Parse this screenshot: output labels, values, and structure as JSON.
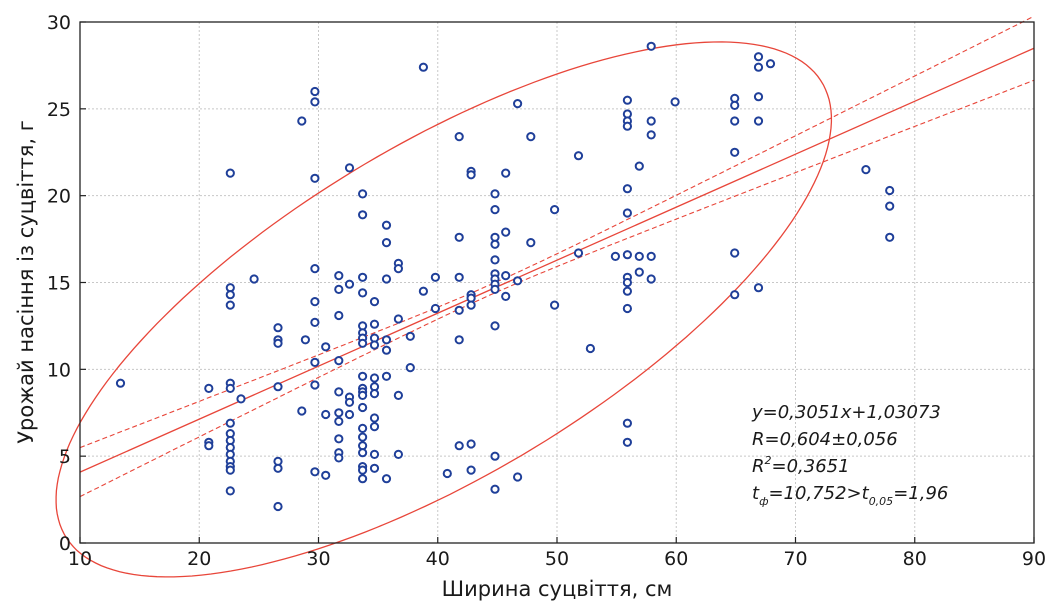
{
  "chart_data": {
    "type": "scatter",
    "xlabel": "Ширина суцвіття, см",
    "ylabel": "Урожай насіння із суцвіття, г",
    "xlim": [
      10,
      90
    ],
    "ylim": [
      0,
      30
    ],
    "xticks": [
      10,
      20,
      30,
      40,
      50,
      60,
      70,
      80,
      90
    ],
    "yticks": [
      0,
      5,
      10,
      15,
      20,
      25,
      30
    ],
    "grid": true,
    "colors": {
      "points": "#1f3f99",
      "fit": "#e8463a",
      "grid": "#c8c8c8"
    },
    "regression": {
      "slope": 0.3051,
      "intercept": 1.03073,
      "ci_offset": 1.2
    },
    "ellipse": {
      "cx": 40.5,
      "cy": 13.45,
      "semi_major": 34.5,
      "semi_minor": 10.2,
      "angle_deg": 20.5
    },
    "annotations": {
      "equation": "y=0,3051x+1,03073",
      "r": "R=0,604±0,056",
      "r2_prefix": "R",
      "r2_sup": "2",
      "r2_suffix": "=0,3651",
      "t_prefix": "t",
      "t_sub1": "ф",
      "t_mid": "=10,752>t",
      "t_sub2": "0,05",
      "t_suffix": "=1,96"
    },
    "points": [
      [
        13.4,
        9.2
      ],
      [
        20.8,
        8.9
      ],
      [
        20.8,
        5.8
      ],
      [
        20.8,
        5.6
      ],
      [
        22.6,
        21.3
      ],
      [
        22.6,
        14.7
      ],
      [
        22.6,
        14.3
      ],
      [
        22.6,
        13.7
      ],
      [
        22.6,
        9.2
      ],
      [
        22.6,
        8.9
      ],
      [
        22.6,
        6.9
      ],
      [
        22.6,
        6.3
      ],
      [
        22.6,
        5.9
      ],
      [
        22.6,
        5.5
      ],
      [
        22.6,
        5.1
      ],
      [
        22.6,
        4.7
      ],
      [
        22.6,
        4.4
      ],
      [
        22.6,
        4.2
      ],
      [
        22.6,
        3.0
      ],
      [
        23.5,
        8.3
      ],
      [
        24.6,
        15.2
      ],
      [
        26.6,
        12.4
      ],
      [
        26.6,
        11.7
      ],
      [
        26.6,
        11.5
      ],
      [
        26.6,
        9.0
      ],
      [
        26.6,
        4.7
      ],
      [
        26.6,
        4.3
      ],
      [
        26.6,
        2.1
      ],
      [
        28.6,
        24.3
      ],
      [
        28.6,
        7.6
      ],
      [
        28.9,
        11.7
      ],
      [
        29.7,
        26.0
      ],
      [
        29.7,
        25.4
      ],
      [
        29.7,
        21.0
      ],
      [
        29.7,
        15.8
      ],
      [
        29.7,
        13.9
      ],
      [
        29.7,
        12.7
      ],
      [
        29.7,
        10.4
      ],
      [
        29.7,
        9.1
      ],
      [
        29.7,
        4.1
      ],
      [
        30.6,
        11.3
      ],
      [
        30.6,
        7.4
      ],
      [
        30.6,
        3.9
      ],
      [
        31.7,
        15.4
      ],
      [
        31.7,
        14.6
      ],
      [
        31.7,
        13.1
      ],
      [
        31.7,
        10.5
      ],
      [
        31.7,
        8.7
      ],
      [
        31.7,
        7.5
      ],
      [
        31.7,
        7.0
      ],
      [
        31.7,
        6.0
      ],
      [
        31.7,
        5.2
      ],
      [
        31.7,
        4.9
      ],
      [
        32.6,
        21.6
      ],
      [
        32.6,
        14.9
      ],
      [
        32.6,
        8.4
      ],
      [
        32.6,
        8.1
      ],
      [
        32.6,
        7.4
      ],
      [
        33.7,
        20.1
      ],
      [
        33.7,
        18.9
      ],
      [
        33.7,
        15.3
      ],
      [
        33.7,
        14.4
      ],
      [
        33.7,
        12.5
      ],
      [
        33.7,
        12.1
      ],
      [
        33.7,
        11.8
      ],
      [
        33.7,
        11.5
      ],
      [
        33.7,
        9.6
      ],
      [
        33.7,
        8.9
      ],
      [
        33.7,
        8.7
      ],
      [
        33.7,
        8.5
      ],
      [
        33.7,
        7.8
      ],
      [
        33.7,
        6.6
      ],
      [
        33.7,
        6.1
      ],
      [
        33.7,
        5.6
      ],
      [
        33.7,
        5.2
      ],
      [
        33.7,
        4.4
      ],
      [
        33.7,
        4.2
      ],
      [
        33.7,
        3.7
      ],
      [
        34.7,
        13.9
      ],
      [
        34.7,
        12.6
      ],
      [
        34.7,
        11.8
      ],
      [
        34.7,
        11.4
      ],
      [
        34.7,
        9.5
      ],
      [
        34.7,
        9.0
      ],
      [
        34.7,
        8.6
      ],
      [
        34.7,
        7.2
      ],
      [
        34.7,
        6.7
      ],
      [
        34.7,
        5.1
      ],
      [
        34.7,
        4.3
      ],
      [
        35.7,
        18.3
      ],
      [
        35.7,
        17.3
      ],
      [
        35.7,
        15.2
      ],
      [
        35.7,
        11.7
      ],
      [
        35.7,
        11.1
      ],
      [
        35.7,
        9.6
      ],
      [
        35.7,
        3.7
      ],
      [
        36.7,
        16.1
      ],
      [
        36.7,
        15.8
      ],
      [
        36.7,
        12.9
      ],
      [
        36.7,
        8.5
      ],
      [
        36.7,
        5.1
      ],
      [
        37.7,
        11.9
      ],
      [
        37.7,
        10.1
      ],
      [
        38.8,
        27.4
      ],
      [
        38.8,
        14.5
      ],
      [
        39.8,
        15.3
      ],
      [
        39.8,
        13.5
      ],
      [
        40.8,
        4.0
      ],
      [
        41.8,
        23.4
      ],
      [
        41.8,
        17.6
      ],
      [
        41.8,
        15.3
      ],
      [
        41.8,
        13.4
      ],
      [
        41.8,
        11.7
      ],
      [
        41.8,
        5.6
      ],
      [
        42.8,
        21.4
      ],
      [
        42.8,
        21.2
      ],
      [
        42.8,
        14.3
      ],
      [
        42.8,
        14.1
      ],
      [
        42.8,
        13.7
      ],
      [
        42.8,
        5.7
      ],
      [
        42.8,
        4.2
      ],
      [
        44.8,
        20.1
      ],
      [
        44.8,
        19.2
      ],
      [
        44.8,
        17.6
      ],
      [
        44.8,
        17.2
      ],
      [
        44.8,
        16.3
      ],
      [
        44.8,
        15.5
      ],
      [
        44.8,
        15.2
      ],
      [
        44.8,
        14.9
      ],
      [
        44.8,
        14.6
      ],
      [
        44.8,
        12.5
      ],
      [
        44.8,
        5.0
      ],
      [
        44.8,
        3.1
      ],
      [
        45.7,
        21.3
      ],
      [
        45.7,
        17.9
      ],
      [
        45.7,
        15.4
      ],
      [
        45.7,
        14.2
      ],
      [
        46.7,
        25.3
      ],
      [
        46.7,
        15.1
      ],
      [
        46.7,
        3.8
      ],
      [
        47.8,
        23.4
      ],
      [
        47.8,
        17.3
      ],
      [
        49.8,
        19.2
      ],
      [
        49.8,
        13.7
      ],
      [
        51.8,
        22.3
      ],
      [
        51.8,
        16.7
      ],
      [
        52.8,
        11.2
      ],
      [
        54.9,
        16.5
      ],
      [
        55.9,
        25.5
      ],
      [
        55.9,
        24.7
      ],
      [
        55.9,
        24.3
      ],
      [
        55.9,
        24.0
      ],
      [
        55.9,
        20.4
      ],
      [
        55.9,
        19.0
      ],
      [
        55.9,
        16.6
      ],
      [
        55.9,
        15.3
      ],
      [
        55.9,
        15.0
      ],
      [
        55.9,
        14.5
      ],
      [
        55.9,
        13.5
      ],
      [
        55.9,
        6.9
      ],
      [
        55.9,
        5.8
      ],
      [
        56.9,
        21.7
      ],
      [
        56.9,
        16.5
      ],
      [
        56.9,
        15.6
      ],
      [
        57.9,
        28.6
      ],
      [
        57.9,
        24.3
      ],
      [
        57.9,
        23.5
      ],
      [
        57.9,
        16.5
      ],
      [
        57.9,
        15.2
      ],
      [
        59.9,
        25.4
      ],
      [
        64.9,
        25.6
      ],
      [
        64.9,
        25.2
      ],
      [
        64.9,
        24.3
      ],
      [
        64.9,
        22.5
      ],
      [
        64.9,
        16.7
      ],
      [
        64.9,
        14.3
      ],
      [
        66.9,
        28.0
      ],
      [
        66.9,
        27.4
      ],
      [
        66.9,
        25.7
      ],
      [
        66.9,
        24.3
      ],
      [
        66.9,
        14.7
      ],
      [
        67.9,
        27.6
      ],
      [
        75.9,
        21.5
      ],
      [
        77.9,
        20.3
      ],
      [
        77.9,
        19.4
      ],
      [
        77.9,
        17.6
      ]
    ]
  }
}
